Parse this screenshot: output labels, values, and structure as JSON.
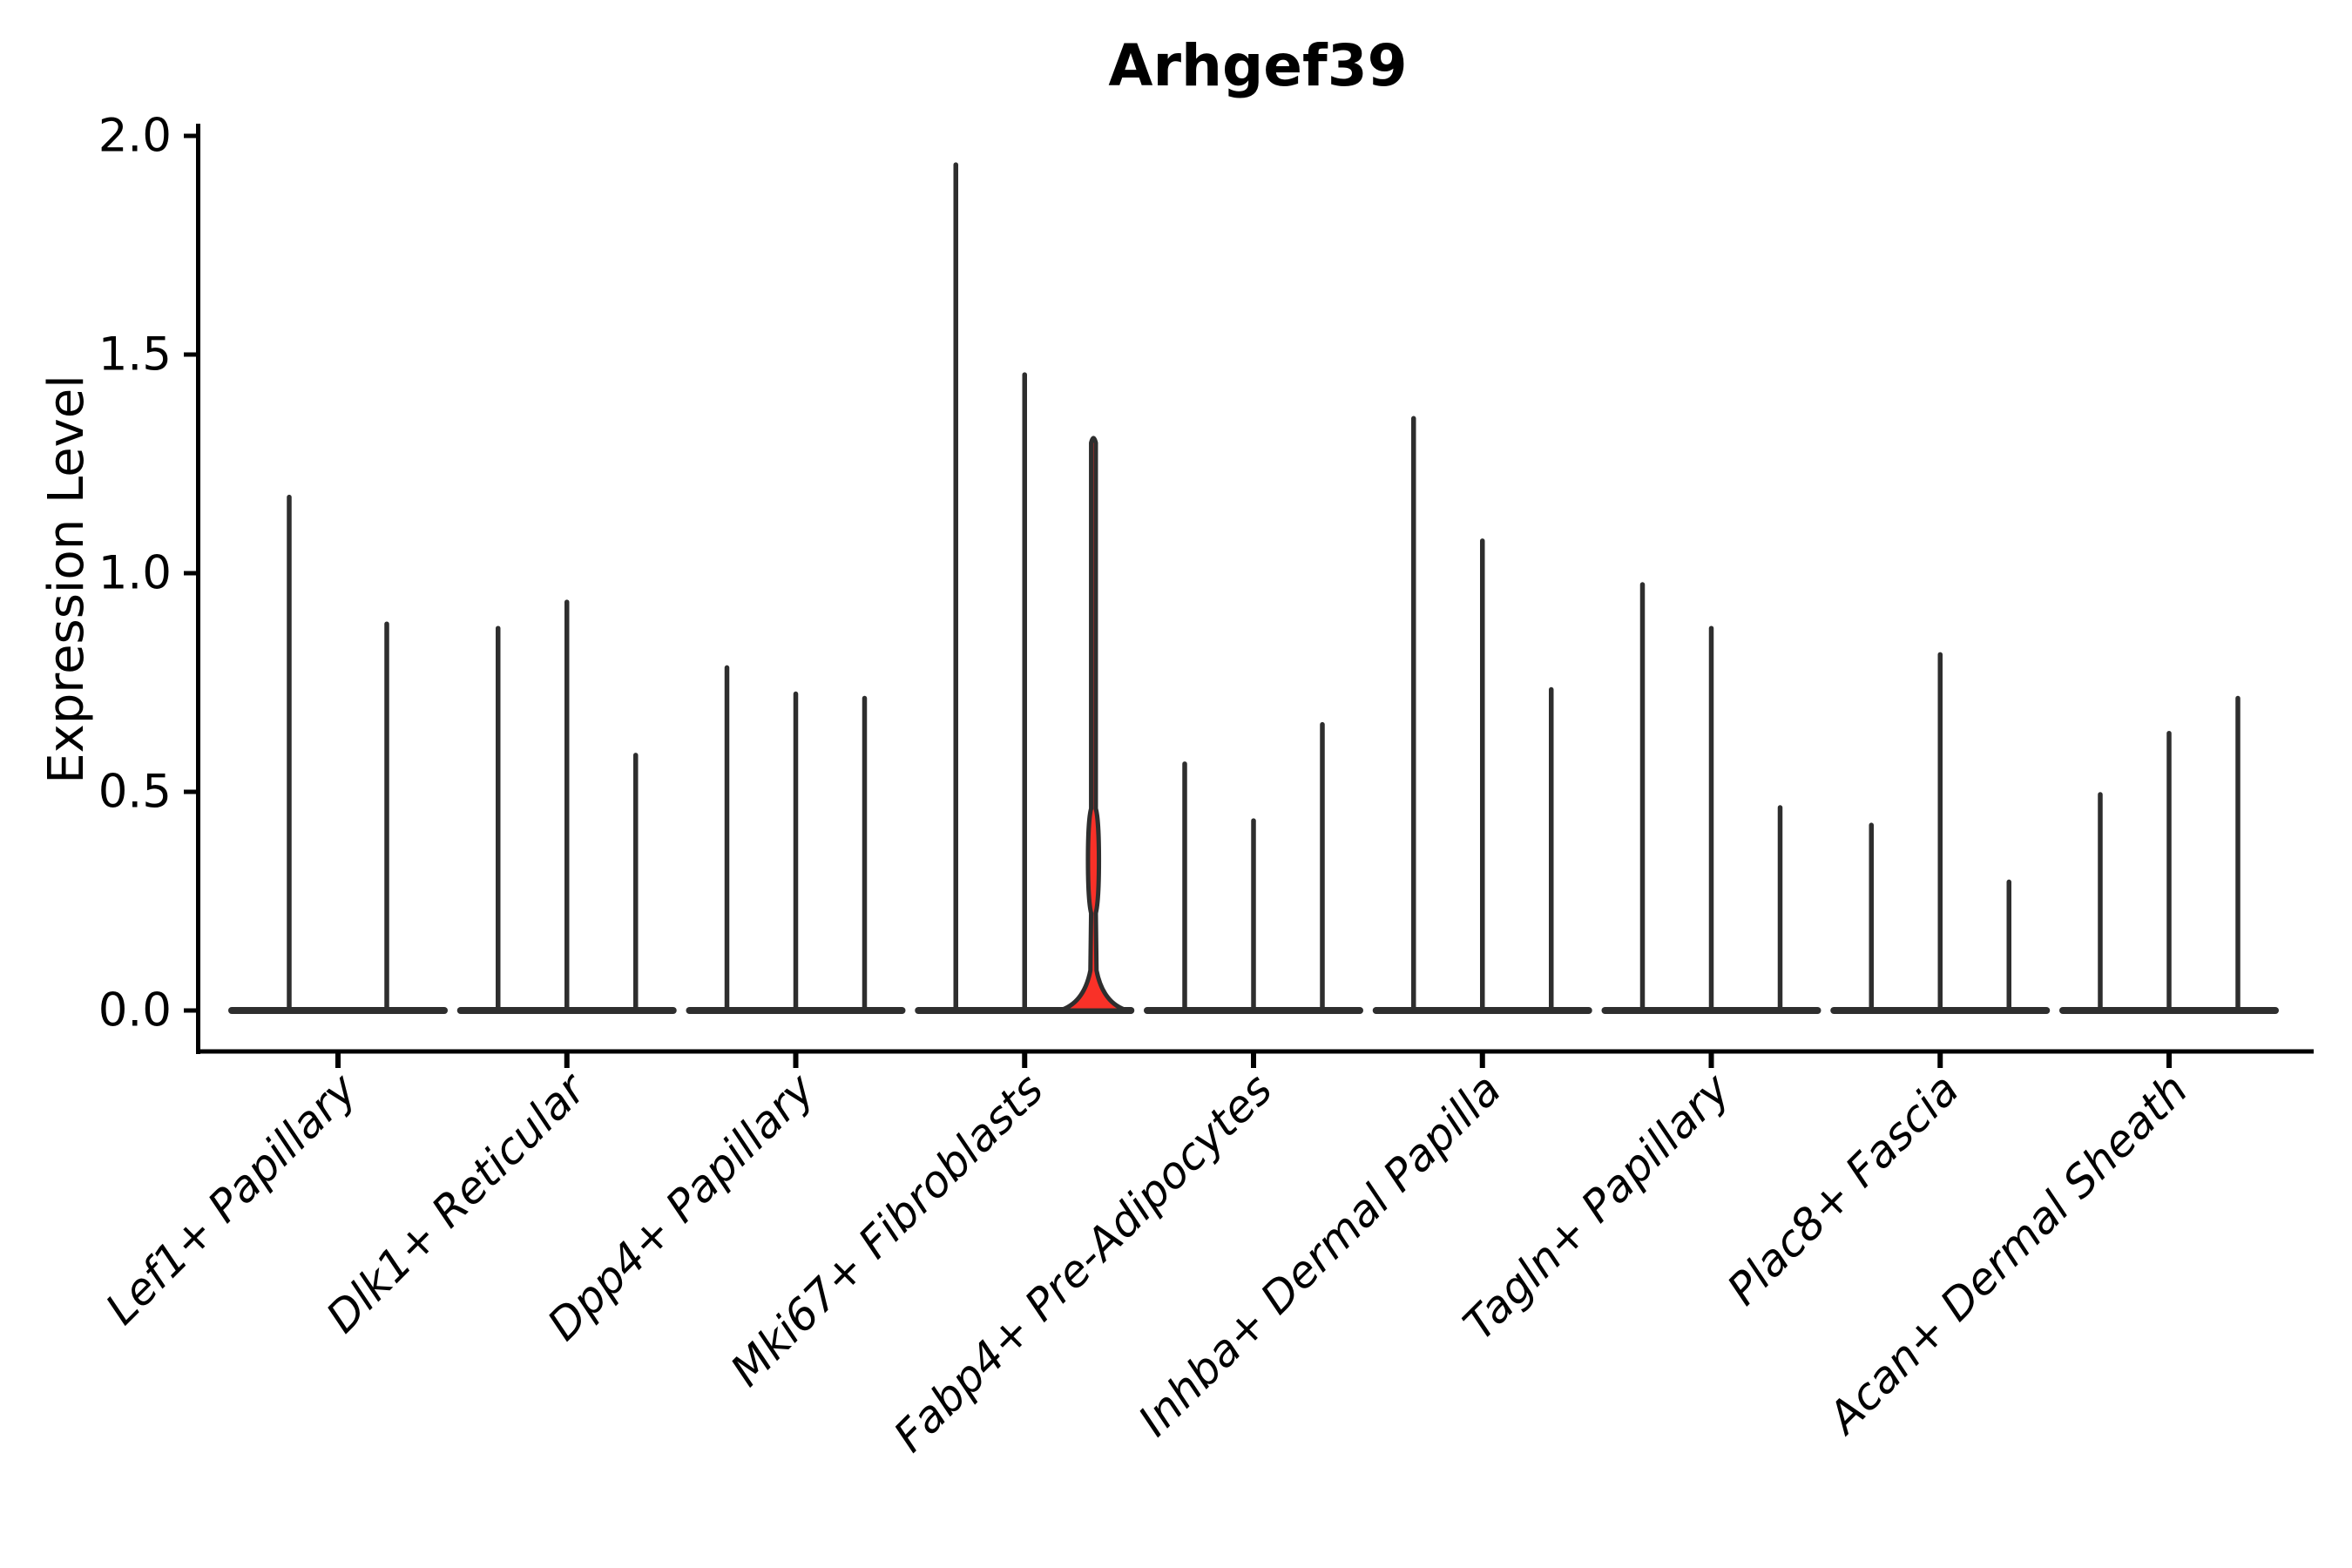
{
  "chart_data": {
    "type": "violin",
    "title": "Arhgef39",
    "ylabel": "Expression Level",
    "xlabel": "",
    "ylim": [
      0.0,
      2.0
    ],
    "yticks": [
      0.0,
      0.5,
      1.0,
      1.5,
      2.0
    ],
    "ytick_labels": [
      "0.0",
      "0.5",
      "1.0",
      "1.5",
      "2.0"
    ],
    "grid": false,
    "legend": "none",
    "groups": [
      {
        "category": "Lef1+ Papillary",
        "violins": [
          {
            "max": 1.18
          },
          {
            "max": 0.89
          }
        ]
      },
      {
        "category": "Dlk1+ Reticular",
        "violins": [
          {
            "max": 0.88
          },
          {
            "max": 0.94
          },
          {
            "max": 0.59
          }
        ]
      },
      {
        "category": "Dpp4+ Papillary",
        "violins": [
          {
            "max": 0.79
          },
          {
            "max": 0.73
          },
          {
            "max": 0.72
          }
        ]
      },
      {
        "category": "Mki67+ Fibroblasts",
        "violins": [
          {
            "max": 1.94
          },
          {
            "max": 1.46
          },
          {
            "max": 1.31,
            "highlighted": true,
            "bulge_at": 0.35,
            "base_mass_to": 0.11
          }
        ]
      },
      {
        "category": "Fabp4+ Pre-Adipocytes",
        "violins": [
          {
            "max": 0.57
          },
          {
            "max": 0.44
          },
          {
            "max": 0.66
          }
        ]
      },
      {
        "category": "Inhba+ Dermal Papilla",
        "violins": [
          {
            "max": 1.36
          },
          {
            "max": 1.08
          },
          {
            "max": 0.74
          }
        ]
      },
      {
        "category": "Tagln+ Papillary",
        "violins": [
          {
            "max": 0.98
          },
          {
            "max": 0.88
          },
          {
            "max": 0.47
          }
        ]
      },
      {
        "category": "Plac8+ Fascia",
        "violins": [
          {
            "max": 0.43
          },
          {
            "max": 0.82
          },
          {
            "max": 0.3
          }
        ]
      },
      {
        "category": "Acan+ Dermal Sheath",
        "violins": [
          {
            "max": 0.5
          },
          {
            "max": 0.64
          },
          {
            "max": 0.72
          }
        ]
      }
    ],
    "colors": {
      "violin_stroke": "#2e2e2e",
      "highlight_fill": "#f93128",
      "axis": "#000000",
      "text": "#000000",
      "background": "#ffffff"
    }
  }
}
